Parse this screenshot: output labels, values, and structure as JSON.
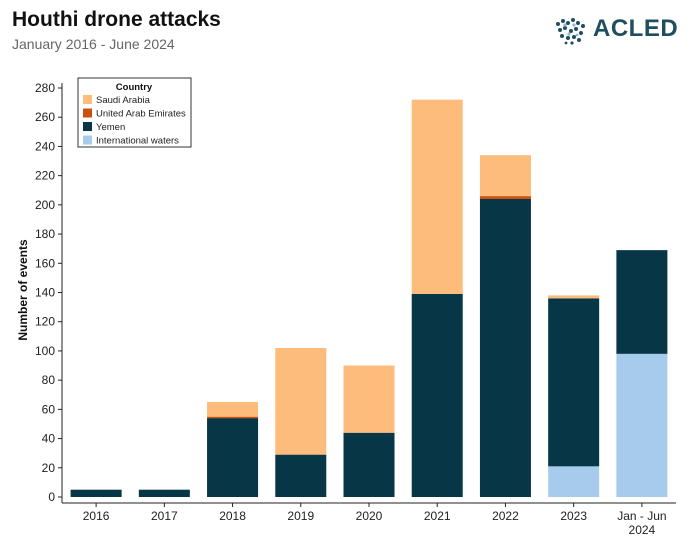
{
  "header": {
    "title": "Houthi drone attacks",
    "subtitle": "January 2016 - June 2024",
    "logo_text": "ACLED"
  },
  "colors": {
    "saudi_arabia": "#fdbb7c",
    "uae": "#c9500d",
    "yemen": "#073646",
    "international_waters": "#a6cbec",
    "logo": "#1f4e5f"
  },
  "chart_data": {
    "type": "bar",
    "stacked": true,
    "title": "Houthi drone attacks",
    "subtitle": "January 2016 - June 2024",
    "xlabel": "",
    "ylabel": "Number of events",
    "ylim": [
      0,
      280
    ],
    "yticks": [
      0,
      20,
      40,
      60,
      80,
      100,
      120,
      140,
      160,
      180,
      200,
      220,
      240,
      260,
      280
    ],
    "grid": false,
    "legend": {
      "title": "Country",
      "position": "top-left"
    },
    "categories": [
      "2016",
      "2017",
      "2018",
      "2019",
      "2020",
      "2021",
      "2022",
      "2023",
      "Jan - Jun 2024"
    ],
    "series": [
      {
        "name": "International waters",
        "color": "#a6cbec",
        "values": [
          0,
          0,
          0,
          0,
          0,
          0,
          0,
          21,
          98
        ]
      },
      {
        "name": "Yemen",
        "color": "#073646",
        "values": [
          5,
          5,
          54,
          29,
          44,
          139,
          204,
          115,
          71
        ]
      },
      {
        "name": "United Arab Emirates",
        "color": "#c9500d",
        "values": [
          0,
          0,
          1,
          0,
          0,
          0,
          2,
          0,
          0
        ]
      },
      {
        "name": "Saudi Arabia",
        "color": "#fdbb7c",
        "values": [
          0,
          0,
          10,
          73,
          46,
          133,
          28,
          2,
          0
        ]
      }
    ],
    "legend_order": [
      "Saudi Arabia",
      "United Arab Emirates",
      "Yemen",
      "International waters"
    ]
  }
}
